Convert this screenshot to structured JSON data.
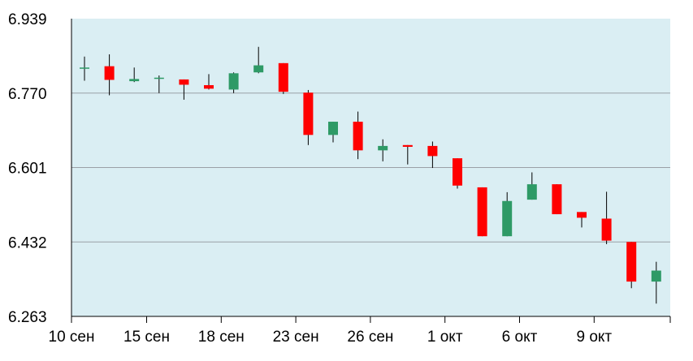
{
  "chart_data": {
    "type": "candlestick",
    "title": "",
    "xlabel": "",
    "ylabel": "",
    "ylim": [
      6.263,
      6.939
    ],
    "yticks": [
      "6.939",
      "6.770",
      "6.601",
      "6.432",
      "6.263"
    ],
    "xticks": [
      {
        "label": "10 сен",
        "pos": 0
      },
      {
        "label": "15 сен",
        "pos": 3
      },
      {
        "label": "18 сен",
        "pos": 6
      },
      {
        "label": "23 сен",
        "pos": 9
      },
      {
        "label": "26 сен",
        "pos": 12
      },
      {
        "label": "1 окт",
        "pos": 15
      },
      {
        "label": "6 окт",
        "pos": 18
      },
      {
        "label": "9 окт",
        "pos": 21
      }
    ],
    "grid": true,
    "colors": {
      "up": "#2e9a66",
      "down": "#ff0000",
      "doji": "#2e9a66",
      "plot_bg": "#daeef3",
      "grid": "#9aa0a6",
      "wick": "#000000"
    },
    "candles": [
      {
        "o": 6.828,
        "h": 6.853,
        "l": 6.798,
        "c": 6.828
      },
      {
        "o": 6.831,
        "h": 6.858,
        "l": 6.765,
        "c": 6.8
      },
      {
        "o": 6.797,
        "h": 6.828,
        "l": 6.795,
        "c": 6.802
      },
      {
        "o": 6.805,
        "h": 6.81,
        "l": 6.77,
        "c": 6.805
      },
      {
        "o": 6.801,
        "h": 6.801,
        "l": 6.755,
        "c": 6.789
      },
      {
        "o": 6.788,
        "h": 6.813,
        "l": 6.778,
        "c": 6.78
      },
      {
        "o": 6.778,
        "h": 6.817,
        "l": 6.77,
        "c": 6.815
      },
      {
        "o": 6.817,
        "h": 6.875,
        "l": 6.815,
        "c": 6.833
      },
      {
        "o": 6.838,
        "h": 6.838,
        "l": 6.768,
        "c": 6.773
      },
      {
        "o": 6.771,
        "h": 6.777,
        "l": 6.652,
        "c": 6.675
      },
      {
        "o": 6.675,
        "h": 6.705,
        "l": 6.658,
        "c": 6.705
      },
      {
        "o": 6.705,
        "h": 6.728,
        "l": 6.62,
        "c": 6.64
      },
      {
        "o": 6.64,
        "h": 6.665,
        "l": 6.615,
        "c": 6.65
      },
      {
        "o": 6.652,
        "h": 6.652,
        "l": 6.608,
        "c": 6.648
      },
      {
        "o": 6.65,
        "h": 6.66,
        "l": 6.6,
        "c": 6.627
      },
      {
        "o": 6.622,
        "h": 6.622,
        "l": 6.553,
        "c": 6.56
      },
      {
        "o": 6.556,
        "h": 6.556,
        "l": 6.445,
        "c": 6.445
      },
      {
        "o": 6.445,
        "h": 6.545,
        "l": 6.445,
        "c": 6.525
      },
      {
        "o": 6.528,
        "h": 6.59,
        "l": 6.528,
        "c": 6.563
      },
      {
        "o": 6.563,
        "h": 6.563,
        "l": 6.495,
        "c": 6.495
      },
      {
        "o": 6.5,
        "h": 6.5,
        "l": 6.465,
        "c": 6.487
      },
      {
        "o": 6.485,
        "h": 6.546,
        "l": 6.427,
        "c": 6.435
      },
      {
        "o": 6.432,
        "h": 6.432,
        "l": 6.327,
        "c": 6.342
      },
      {
        "o": 6.342,
        "h": 6.387,
        "l": 6.292,
        "c": 6.367
      }
    ]
  }
}
